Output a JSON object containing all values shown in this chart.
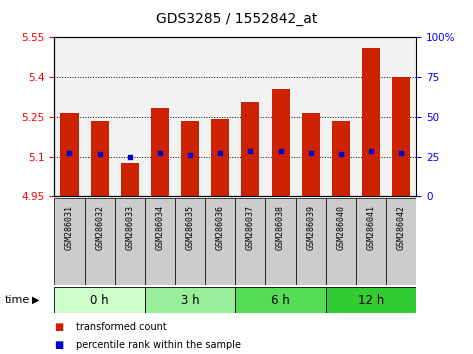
{
  "title": "GDS3285 / 1552842_at",
  "samples": [
    "GSM286031",
    "GSM286032",
    "GSM286033",
    "GSM286034",
    "GSM286035",
    "GSM286036",
    "GSM286037",
    "GSM286038",
    "GSM286039",
    "GSM286040",
    "GSM286041",
    "GSM286042"
  ],
  "bar_tops": [
    5.265,
    5.235,
    5.075,
    5.285,
    5.235,
    5.24,
    5.305,
    5.355,
    5.265,
    5.235,
    5.51,
    5.4
  ],
  "percentile_values": [
    5.115,
    5.11,
    5.1,
    5.115,
    5.105,
    5.115,
    5.12,
    5.12,
    5.115,
    5.11,
    5.12,
    5.115
  ],
  "bar_bottom": 4.95,
  "ylim": [
    4.95,
    5.55
  ],
  "yticks_left": [
    4.95,
    5.1,
    5.25,
    5.4,
    5.55
  ],
  "yticks_right": [
    0,
    25,
    50,
    75,
    100
  ],
  "yticks_right_labels": [
    "0",
    "25",
    "50",
    "75",
    "100%"
  ],
  "grid_lines": [
    5.1,
    5.25,
    5.4
  ],
  "time_groups": [
    {
      "label": "0 h",
      "start": 0,
      "end": 3,
      "color": "#ccffcc"
    },
    {
      "label": "3 h",
      "start": 3,
      "end": 6,
      "color": "#99ee99"
    },
    {
      "label": "6 h",
      "start": 6,
      "end": 9,
      "color": "#55dd55"
    },
    {
      "label": "12 h",
      "start": 9,
      "end": 12,
      "color": "#33cc33"
    }
  ],
  "bar_color": "#cc2200",
  "percentile_color": "#0000cc",
  "bar_width": 0.6,
  "sample_bg": "#cccccc",
  "title_fontsize": 10,
  "tick_fontsize": 7.5
}
